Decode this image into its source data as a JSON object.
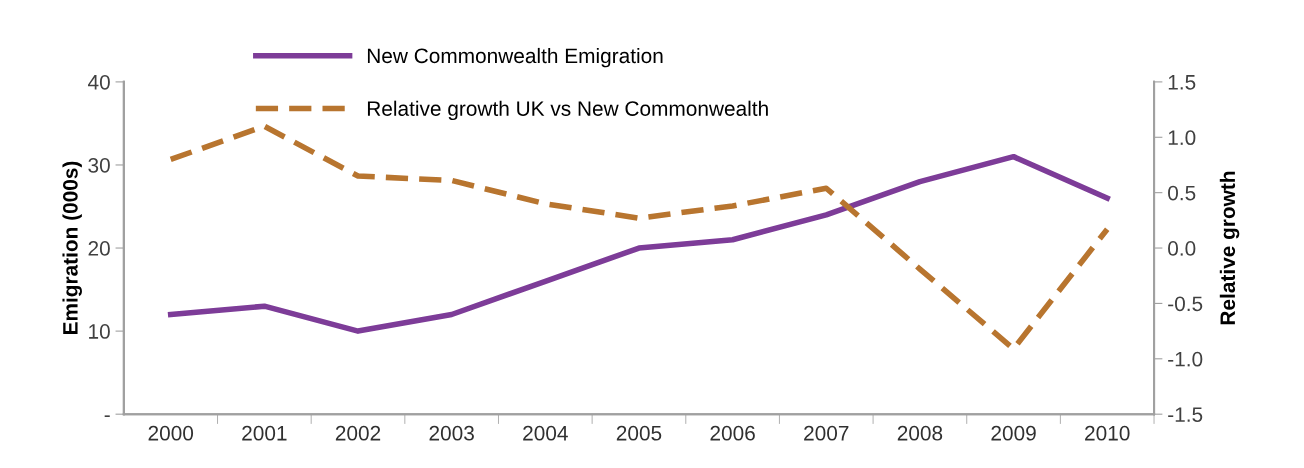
{
  "chart_data": {
    "type": "line",
    "ylabel": "Emigration (000s)",
    "y2label": "Relative growth",
    "categories": [
      "2000",
      "2001",
      "2002",
      "2003",
      "2004",
      "2005",
      "2006",
      "2007",
      "2008",
      "2009",
      "2010"
    ],
    "series": [
      {
        "name": "New Commonwealth Emigration",
        "color": "#7d3c98",
        "values": [
          12,
          13,
          10,
          12,
          16,
          20,
          21,
          24,
          28,
          31,
          26
        ],
        "line_style": "solid"
      },
      {
        "name": "Relative growth UK vs New Commonwealth",
        "color": "#b8752f",
        "axis": "y2",
        "values": [
          0.8,
          1.1,
          0.65,
          0.61,
          0.4,
          0.27,
          0.38,
          0.54,
          -0.19,
          -0.91,
          0.17
        ],
        "line_style": "dashed"
      }
    ],
    "ylim": [
      0,
      40
    ],
    "yticks": [
      {
        "value": 0,
        "label": "-"
      },
      10,
      20,
      30,
      40
    ],
    "y2lim": [
      -1.5,
      1.5
    ],
    "y2ticks": [
      {
        "value": -1.5,
        "label": "-1.5"
      },
      {
        "value": -1.0,
        "label": "-1.0"
      },
      {
        "value": -0.5,
        "label": "-0.5"
      },
      {
        "value": 0.0,
        "label": "0.0"
      },
      {
        "value": 0.5,
        "label": "0.5"
      },
      {
        "value": 1.0,
        "label": "1.0"
      },
      {
        "value": 1.5,
        "label": "1.5"
      }
    ],
    "legend": "top",
    "grid": false,
    "marker": "none"
  }
}
